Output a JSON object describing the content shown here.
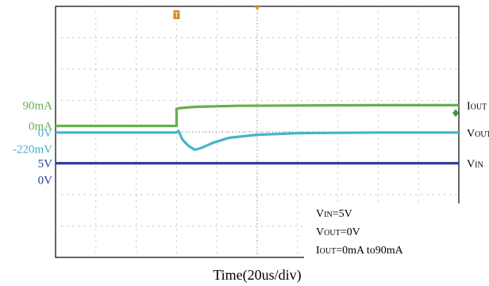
{
  "chart_data": {
    "type": "line",
    "xlabel": "Time(20us/div)",
    "x_divisions": 10,
    "y_divisions": 8,
    "grid": true,
    "left_labels": [
      {
        "text": "90mA",
        "color": "#66b04e",
        "level": 0.85
      },
      {
        "text": "0mA",
        "color": "#66b04e",
        "level": 0.19
      },
      {
        "text": "0V",
        "color": "#46b4c8",
        "level": -0.02
      },
      {
        "text": "-220mV",
        "color": "#46b4c8",
        "level": -0.54
      },
      {
        "text": "5V",
        "color": "#2e3f9a",
        "level": -1.0
      },
      {
        "text": "0V",
        "color": "#2e3f9a",
        "level": -1.53
      }
    ],
    "right_labels": [
      {
        "main": "I",
        "sub": "OUT",
        "color": "#000000",
        "level": 0.85
      },
      {
        "main": "V",
        "sub": "OUT",
        "color": "#000000",
        "level": -0.02
      },
      {
        "main": "V",
        "sub": "IN",
        "color": "#000000",
        "level": -1.0
      }
    ],
    "series": [
      {
        "color": "#66b04e",
        "points": [
          [
            0,
            0.19
          ],
          [
            1.9,
            0.19
          ],
          [
            3.0,
            0.19
          ],
          [
            3.0,
            0.74
          ],
          [
            3.1,
            0.76
          ],
          [
            3.5,
            0.8
          ],
          [
            4.5,
            0.83
          ],
          [
            6,
            0.84
          ],
          [
            8,
            0.85
          ],
          [
            10,
            0.85
          ]
        ]
      },
      {
        "color": "#46b4c8",
        "points": [
          [
            0,
            -0.02
          ],
          [
            3.0,
            -0.02
          ],
          [
            3.05,
            0.03
          ],
          [
            3.15,
            -0.25
          ],
          [
            3.3,
            -0.45
          ],
          [
            3.45,
            -0.57
          ],
          [
            3.6,
            -0.52
          ],
          [
            3.9,
            -0.35
          ],
          [
            4.3,
            -0.19
          ],
          [
            5.0,
            -0.09
          ],
          [
            6.0,
            -0.04
          ],
          [
            8.0,
            -0.02
          ],
          [
            10,
            -0.02
          ]
        ]
      },
      {
        "color": "#2e3f9a",
        "points": [
          [
            0,
            -1.0
          ],
          [
            10,
            -1.0
          ]
        ]
      }
    ],
    "trigger_markers": [
      {
        "text": "T",
        "color": "#d98a1a",
        "x": 3.0
      }
    ],
    "annotations": [
      {
        "main": "V",
        "sub": "IN",
        "rest": "=5V"
      },
      {
        "main": "V",
        "sub": "OUT",
        "rest": "=0V"
      },
      {
        "main": "I",
        "sub": "OUT",
        "rest": "=0mA to90mA"
      }
    ]
  }
}
